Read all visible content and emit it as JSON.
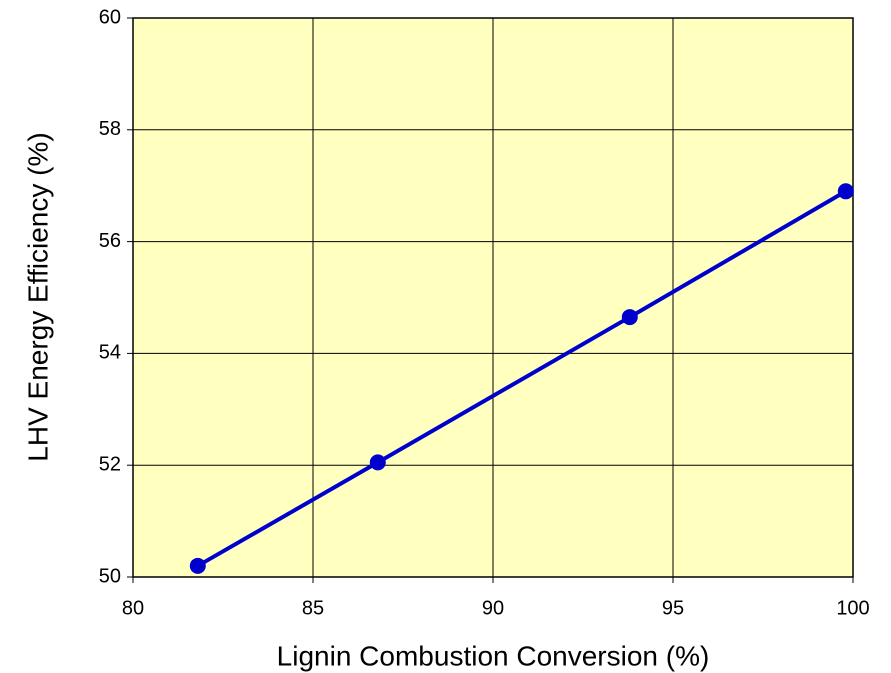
{
  "chart_data": {
    "type": "line",
    "xlabel": "Lignin Combustion Conversion (%)",
    "ylabel": "LHV Energy Efficiency (%)",
    "x": [
      81.8,
      86.8,
      93.8,
      99.8
    ],
    "values": [
      50.2,
      52.05,
      54.65,
      56.9
    ],
    "color": "#0000cc",
    "background": "#ffffc0",
    "xlim": [
      80,
      100
    ],
    "xticks": [
      80,
      85,
      90,
      95,
      100
    ],
    "ylim": [
      50,
      60
    ],
    "yticks": [
      50,
      52,
      54,
      56,
      58,
      60
    ],
    "grid": true
  }
}
